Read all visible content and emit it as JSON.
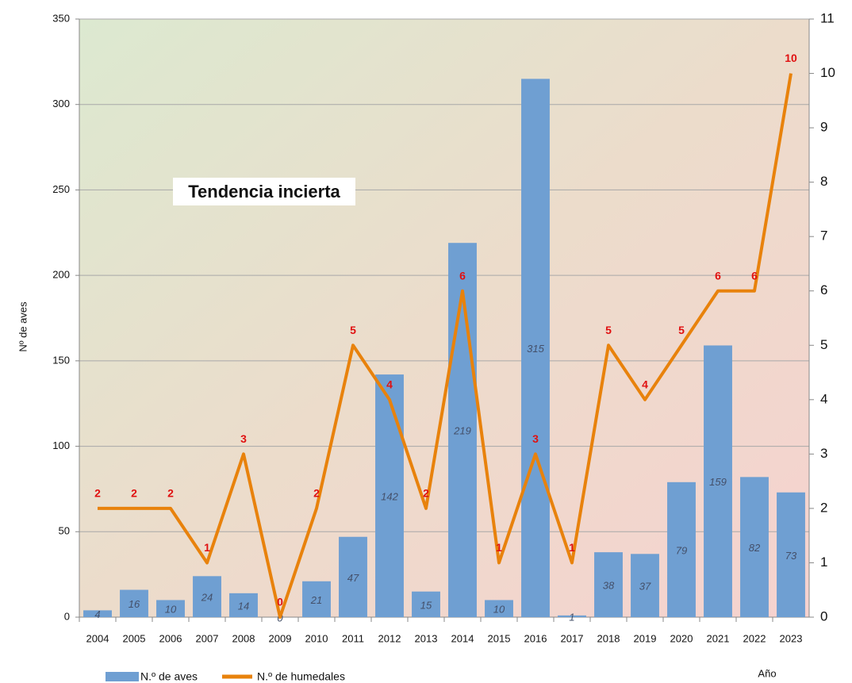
{
  "chart_data": {
    "type": "combo",
    "annotation": "Tendencia incierta",
    "y_label": "Nº de aves",
    "x_label": "Año",
    "categories": [
      "2004",
      "2005",
      "2006",
      "2007",
      "2008",
      "2009",
      "2010",
      "2011",
      "2012",
      "2013",
      "2014",
      "2015",
      "2016",
      "2017",
      "2018",
      "2019",
      "2020",
      "2021",
      "2022",
      "2023"
    ],
    "series": [
      {
        "name": "N.º de aves",
        "type": "bar",
        "color": "#6f9fd2",
        "axis": "y",
        "values": [
          4,
          16,
          10,
          24,
          14,
          0,
          21,
          47,
          142,
          15,
          219,
          10,
          315,
          1,
          38,
          37,
          79,
          159,
          82,
          73
        ]
      },
      {
        "name": "N.º de humedales",
        "type": "line",
        "color": "#e8820c",
        "axis": "y2",
        "values": [
          2,
          2,
          2,
          1,
          3,
          0,
          2,
          5,
          4,
          2,
          6,
          1,
          3,
          1,
          5,
          4,
          5,
          6,
          6,
          10
        ]
      }
    ],
    "ylim": [
      0,
      350
    ],
    "yticks": [
      0,
      50,
      100,
      150,
      200,
      250,
      300,
      350
    ],
    "y2lim": [
      0,
      11
    ],
    "y2ticks": [
      0,
      1,
      2,
      3,
      4,
      5,
      6,
      7,
      8,
      9,
      10,
      11
    ],
    "grid": true
  }
}
